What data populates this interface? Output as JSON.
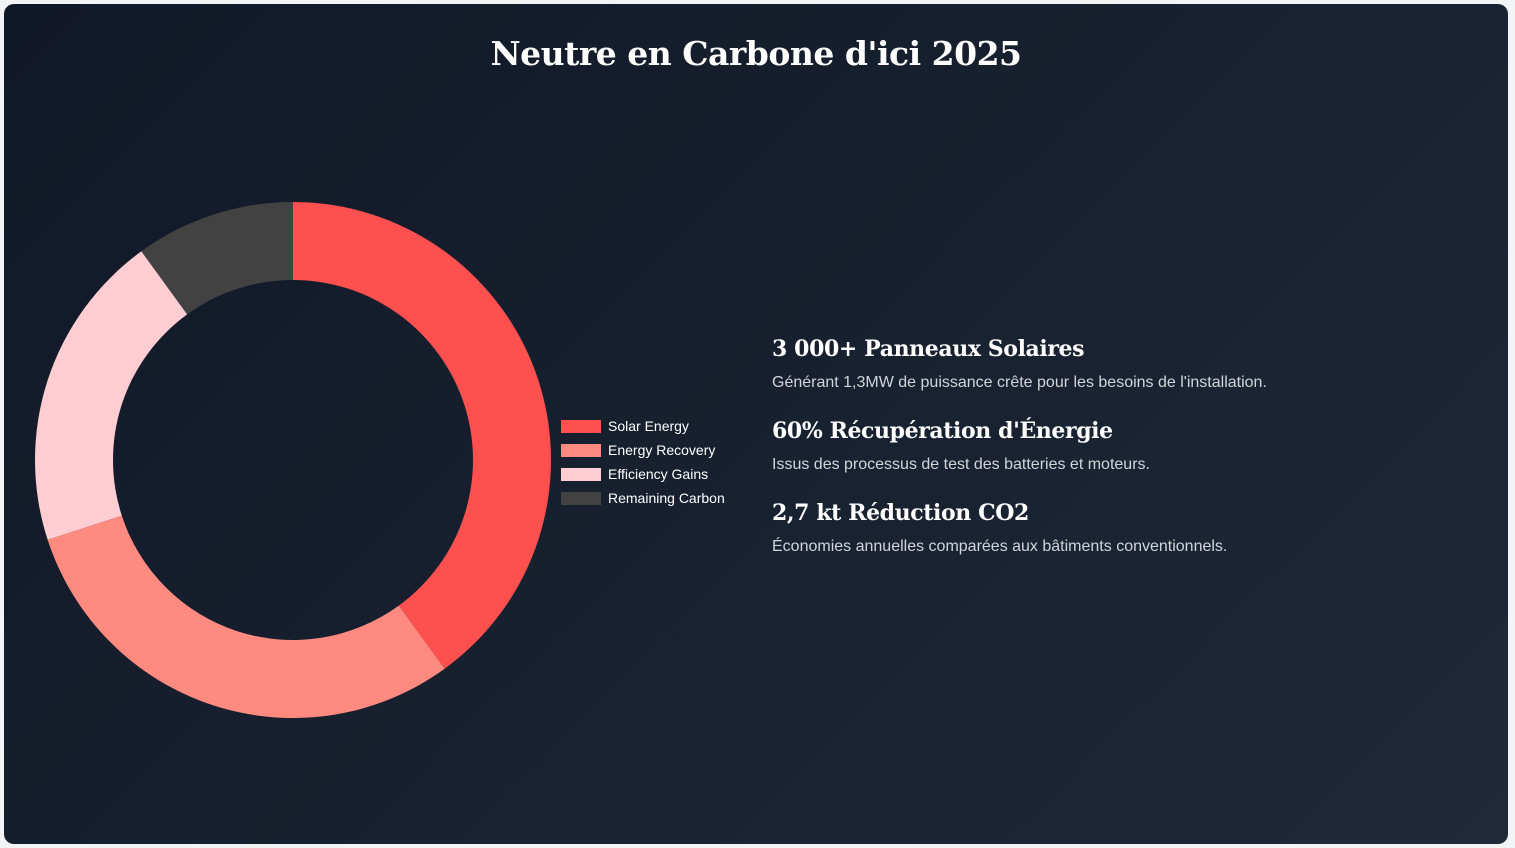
{
  "title": "Neutre en Carbone d'ici 2025",
  "chart_data": {
    "type": "pie",
    "variant": "doughnut",
    "categories": [
      "Solar Energy",
      "Energy Recovery",
      "Efficiency Gains",
      "Remaining Carbon"
    ],
    "values": [
      40,
      30,
      20,
      10
    ],
    "colors": [
      "#ff5050",
      "#ff8a80",
      "#ffcdd2",
      "#424242"
    ],
    "legend_position": "right"
  },
  "stats": [
    {
      "title": "3 000+ Panneaux Solaires",
      "description": "Générant 1,3MW de puissance crête pour les besoins de l'installation."
    },
    {
      "title": "60% Récupération d'Énergie",
      "description": "Issus des processus de test des batteries et moteurs."
    },
    {
      "title": "2,7 kt Réduction CO2",
      "description": "Économies annuelles comparées aux bâtiments conventionnels."
    }
  ]
}
